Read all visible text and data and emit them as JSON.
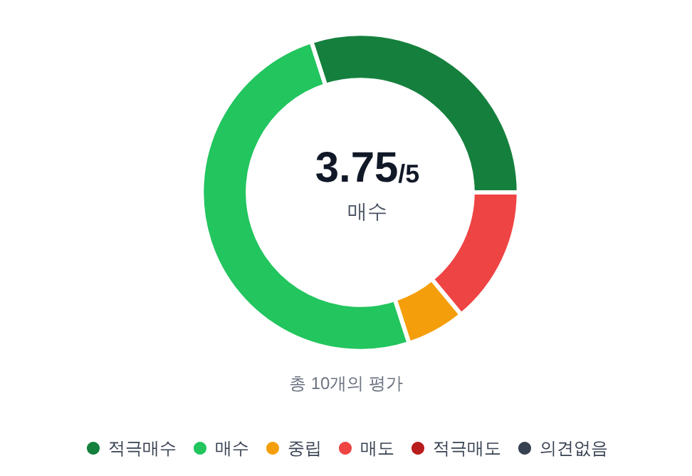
{
  "chart_data": {
    "type": "donut",
    "title": "3.75/5",
    "subtitle": "매수",
    "annotations": [
      "총 10개의 평가"
    ],
    "categories": [
      "적극매수",
      "매수",
      "중립",
      "매도",
      "적극매도",
      "의견없음"
    ],
    "values": [
      30,
      50,
      6,
      14,
      0,
      0
    ],
    "colors": [
      "#15803d",
      "#22c55e",
      "#f59e0b",
      "#ef4444",
      "#b91c1c",
      "#374151"
    ],
    "legend": "bottom"
  }
}
